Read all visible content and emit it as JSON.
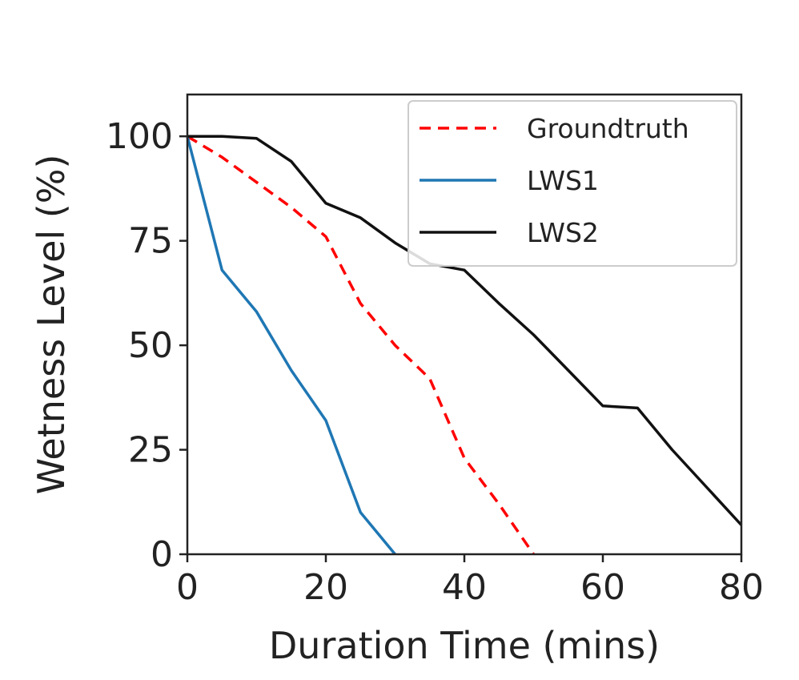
{
  "chart_data": {
    "type": "line",
    "title": "",
    "xlabel": "Duration Time (mins)",
    "ylabel": "Wetness Level (%)",
    "xlim": [
      0,
      80
    ],
    "ylim": [
      0,
      110
    ],
    "xticks": [
      0,
      20,
      40,
      60,
      80
    ],
    "yticks": [
      0,
      25,
      50,
      75,
      100
    ],
    "grid": false,
    "legend_position": "top-right",
    "series": [
      {
        "name": "Groundtruth",
        "color": "#ff0000",
        "style": "dashed",
        "x": [
          0,
          5,
          10,
          15,
          20,
          25,
          30,
          35,
          40,
          45,
          50
        ],
        "y": [
          100,
          95,
          89,
          83,
          76,
          60,
          50,
          42,
          23,
          12,
          0
        ]
      },
      {
        "name": "LWS1",
        "color": "#1f77b4",
        "style": "solid",
        "x": [
          0,
          5,
          10,
          15,
          20,
          25,
          30
        ],
        "y": [
          100,
          68,
          58,
          44,
          32,
          10,
          0
        ]
      },
      {
        "name": "LWS2",
        "color": "#111111",
        "style": "solid",
        "x": [
          0,
          5,
          10,
          15,
          20,
          25,
          30,
          35,
          40,
          45,
          50,
          55,
          60,
          65,
          70,
          75,
          80
        ],
        "y": [
          100,
          100,
          99.5,
          94,
          84,
          80.5,
          74.5,
          69.5,
          68,
          60,
          52.5,
          44,
          35.5,
          35,
          25,
          16,
          7
        ]
      }
    ]
  }
}
